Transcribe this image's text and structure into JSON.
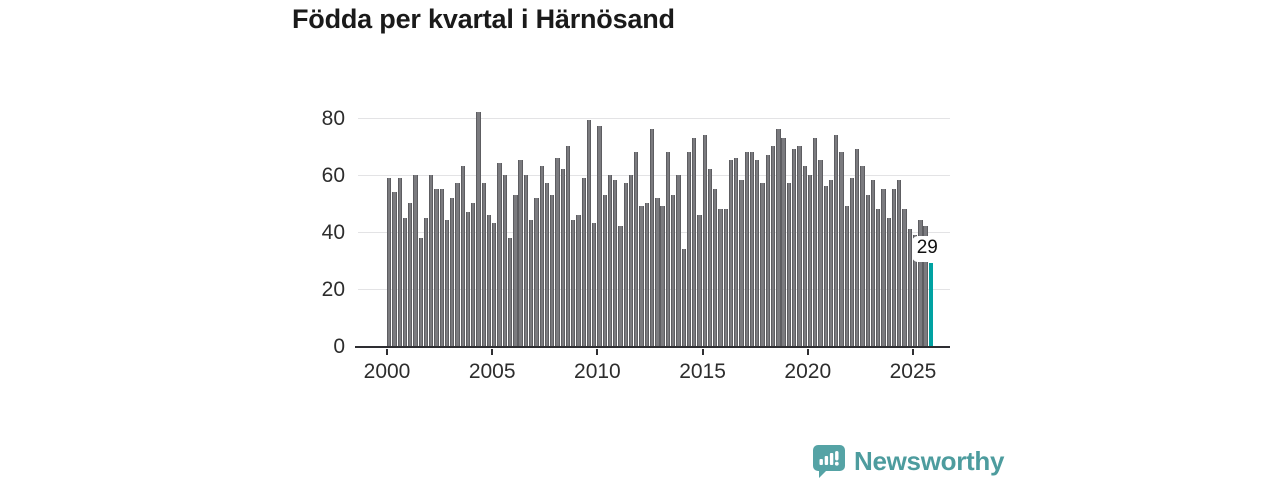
{
  "chart_data": {
    "type": "bar",
    "title": "Födda per kvartal i Härnösand",
    "xlabel": "",
    "ylabel": "",
    "unit": "födda per kvartal",
    "start_year": 2000,
    "quarters_per_year": 4,
    "series": [
      {
        "year": 2000,
        "values": [
          59,
          54,
          59,
          45
        ]
      },
      {
        "year": 2001,
        "values": [
          50,
          60,
          38,
          45
        ]
      },
      {
        "year": 2002,
        "values": [
          60,
          55,
          55,
          44
        ]
      },
      {
        "year": 2003,
        "values": [
          52,
          57,
          63,
          47
        ]
      },
      {
        "year": 2004,
        "values": [
          50,
          82,
          57,
          46
        ]
      },
      {
        "year": 2005,
        "values": [
          43,
          64,
          60,
          38
        ]
      },
      {
        "year": 2006,
        "values": [
          53,
          65,
          60,
          44
        ]
      },
      {
        "year": 2007,
        "values": [
          52,
          63,
          57,
          53
        ]
      },
      {
        "year": 2008,
        "values": [
          66,
          62,
          70,
          44
        ]
      },
      {
        "year": 2009,
        "values": [
          46,
          59,
          79,
          43
        ]
      },
      {
        "year": 2010,
        "values": [
          77,
          53,
          60,
          58
        ]
      },
      {
        "year": 2011,
        "values": [
          42,
          57,
          60,
          68
        ]
      },
      {
        "year": 2012,
        "values": [
          49,
          50,
          76,
          52
        ]
      },
      {
        "year": 2013,
        "values": [
          49,
          68,
          53,
          60
        ]
      },
      {
        "year": 2014,
        "values": [
          34,
          68,
          73,
          46
        ]
      },
      {
        "year": 2015,
        "values": [
          74,
          62,
          55,
          48
        ]
      },
      {
        "year": 2016,
        "values": [
          48,
          65,
          66,
          58
        ]
      },
      {
        "year": 2017,
        "values": [
          68,
          68,
          65,
          57
        ]
      },
      {
        "year": 2018,
        "values": [
          67,
          70,
          76,
          73
        ]
      },
      {
        "year": 2019,
        "values": [
          57,
          69,
          70,
          63
        ]
      },
      {
        "year": 2020,
        "values": [
          60,
          73,
          65,
          56
        ]
      },
      {
        "year": 2021,
        "values": [
          58,
          74,
          68,
          49
        ]
      },
      {
        "year": 2022,
        "values": [
          59,
          69,
          63,
          53
        ]
      },
      {
        "year": 2023,
        "values": [
          58,
          48,
          55,
          45
        ]
      },
      {
        "year": 2024,
        "values": [
          55,
          58,
          48,
          41
        ]
      },
      {
        "year": 2025,
        "values": [
          39,
          44,
          42,
          29
        ]
      }
    ],
    "x_tick_labels": [
      "2000",
      "2005",
      "2010",
      "2015",
      "2020",
      "2025"
    ],
    "y_ticks": [
      0,
      20,
      40,
      60,
      80
    ],
    "ylim": [
      0,
      86
    ],
    "grid": "horizontal",
    "legend": "none",
    "bar_color": "#7b7b7f",
    "highlight_color": "#00a2a2",
    "highlight_last_bar": true,
    "annotation": {
      "text": "29",
      "attached_to": "last-bar"
    }
  },
  "branding": {
    "logo_text": "Newsworthy",
    "logo_color": "#4d9c9e",
    "icon": "speech-bubble-bar-chart-icon"
  }
}
